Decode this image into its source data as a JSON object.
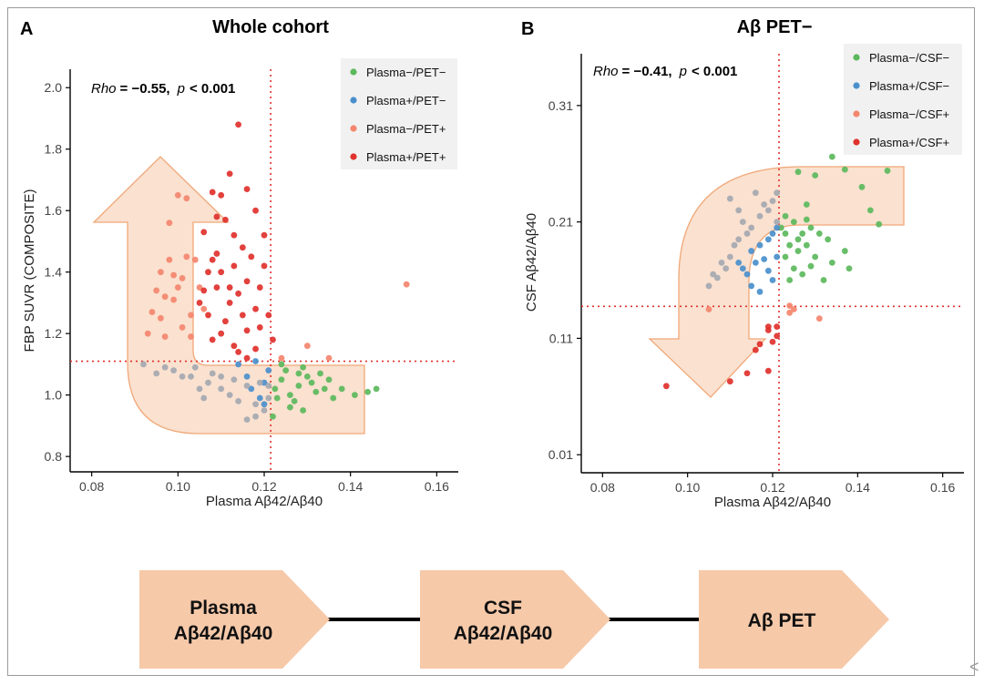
{
  "figure": {
    "arrow_fill": "#f6c9a9",
    "arrow_stroke": "#f0a878",
    "ref_line_color": "#e0312c",
    "corner_glyph": "<"
  },
  "chart_data": [
    {
      "type": "scatter",
      "panel_letter": "A",
      "title": "Whole cohort",
      "xlabel": "Plasma Aβ42/Aβ40",
      "ylabel": "FBP SUVR (COMPOSITE)",
      "xlim": [
        0.075,
        0.165
      ],
      "ylim": [
        0.75,
        2.06
      ],
      "xticks": [
        "0.08",
        "0.10",
        "0.12",
        "0.14",
        "0.16"
      ],
      "yticks": [
        "0.8",
        "1.0",
        "1.2",
        "1.4",
        "1.6",
        "1.8",
        "2.0"
      ],
      "ref_x": 0.1215,
      "ref_y": 1.11,
      "annotation": {
        "rho_label": "Rho",
        "rho_value": "= −0.55,",
        "p_label": "p",
        "p_value": "< 0.001"
      },
      "legend": [
        {
          "key": "neg_neg",
          "label": "Plasma−/PET−",
          "color": "#5cb85c"
        },
        {
          "key": "pos_neg",
          "label": "Plasma+/PET−",
          "color": "#4a8fcc"
        },
        {
          "key": "neg_pos",
          "label": "Plasma−/PET+",
          "color": "#f4866e"
        },
        {
          "key": "pos_pos",
          "label": "Plasma+/PET+",
          "color": "#e0312c"
        }
      ],
      "series": [
        {
          "name": "Plasma−/PET−",
          "color": "#5cb85c",
          "points": [
            [
              0.1225,
              1.02
            ],
            [
              0.124,
              1.05
            ],
            [
              0.126,
              1.0
            ],
            [
              0.128,
              1.03
            ],
            [
              0.13,
              1.06
            ],
            [
              0.132,
              1.01
            ],
            [
              0.127,
              0.98
            ],
            [
              0.125,
              1.08
            ],
            [
              0.129,
              0.95
            ],
            [
              0.131,
              1.04
            ],
            [
              0.134,
              1.02
            ],
            [
              0.136,
              0.99
            ],
            [
              0.133,
              1.07
            ],
            [
              0.138,
              1.02
            ],
            [
              0.141,
              1.0
            ],
            [
              0.144,
              1.01
            ],
            [
              0.146,
              1.02
            ],
            [
              0.124,
              1.1
            ],
            [
              0.122,
              0.93
            ],
            [
              0.126,
              0.96
            ],
            [
              0.129,
              1.09
            ],
            [
              0.135,
              1.05
            ],
            [
              0.123,
              0.99
            ],
            [
              0.128,
              1.07
            ]
          ]
        },
        {
          "name": "Plasma+/PET−",
          "color": "#4a8fcc",
          "points": [
            [
              0.114,
              1.1
            ],
            [
              0.118,
              1.11
            ],
            [
              0.121,
              1.08
            ],
            [
              0.12,
              1.04
            ],
            [
              0.117,
              1.02
            ],
            [
              0.116,
              1.06
            ],
            [
              0.119,
              0.99
            ],
            [
              0.12,
              0.97
            ]
          ]
        },
        {
          "name": "Plasma−/PET+",
          "color": "#f4866e",
          "points": [
            [
              0.1,
              1.65
            ],
            [
              0.098,
              1.56
            ],
            [
              0.096,
              1.4
            ],
            [
              0.097,
              1.32
            ],
            [
              0.094,
              1.27
            ],
            [
              0.093,
              1.2
            ],
            [
              0.102,
              1.45
            ],
            [
              0.101,
              1.38
            ],
            [
              0.099,
              1.31
            ],
            [
              0.103,
              1.26
            ],
            [
              0.104,
              1.44
            ],
            [
              0.105,
              1.35
            ],
            [
              0.098,
              1.44
            ],
            [
              0.095,
              1.34
            ],
            [
              0.101,
              1.22
            ],
            [
              0.103,
              1.19
            ],
            [
              0.097,
              1.19
            ],
            [
              0.096,
              1.25
            ],
            [
              0.1,
              1.35
            ],
            [
              0.106,
              1.28
            ],
            [
              0.153,
              1.36
            ],
            [
              0.13,
              1.16
            ],
            [
              0.135,
              1.12
            ],
            [
              0.124,
              1.12
            ],
            [
              0.102,
              1.64
            ],
            [
              0.099,
              1.39
            ]
          ]
        },
        {
          "name": "Plasma+/PET+",
          "color": "#e0312c",
          "points": [
            [
              0.114,
              1.88
            ],
            [
              0.112,
              1.72
            ],
            [
              0.108,
              1.66
            ],
            [
              0.11,
              1.65
            ],
            [
              0.116,
              1.67
            ],
            [
              0.109,
              1.58
            ],
            [
              0.111,
              1.57
            ],
            [
              0.118,
              1.6
            ],
            [
              0.12,
              1.52
            ],
            [
              0.115,
              1.48
            ],
            [
              0.113,
              1.42
            ],
            [
              0.107,
              1.4
            ],
            [
              0.106,
              1.34
            ],
            [
              0.109,
              1.35
            ],
            [
              0.112,
              1.3
            ],
            [
              0.114,
              1.33
            ],
            [
              0.116,
              1.37
            ],
            [
              0.118,
              1.28
            ],
            [
              0.119,
              1.22
            ],
            [
              0.111,
              1.24
            ],
            [
              0.108,
              1.18
            ],
            [
              0.113,
              1.16
            ],
            [
              0.116,
              1.12
            ],
            [
              0.118,
              1.15
            ],
            [
              0.105,
              1.3
            ],
            [
              0.107,
              1.26
            ],
            [
              0.11,
              1.2
            ],
            [
              0.12,
              1.42
            ],
            [
              0.121,
              1.26
            ],
            [
              0.122,
              1.18
            ],
            [
              0.109,
              1.46
            ],
            [
              0.106,
              1.53
            ],
            [
              0.113,
              1.52
            ],
            [
              0.117,
              1.45
            ],
            [
              0.119,
              1.35
            ],
            [
              0.115,
              1.26
            ],
            [
              0.112,
              1.35
            ],
            [
              0.11,
              1.4
            ],
            [
              0.108,
              1.44
            ],
            [
              0.116,
              1.21
            ],
            [
              0.114,
              1.14
            ]
          ]
        },
        {
          "name": "unlabeled",
          "color": "#a4a8b0",
          "points": [
            [
              0.092,
              1.1
            ],
            [
              0.095,
              1.07
            ],
            [
              0.099,
              1.08
            ],
            [
              0.103,
              1.06
            ],
            [
              0.107,
              1.04
            ],
            [
              0.11,
              1.02
            ],
            [
              0.112,
              1.0
            ],
            [
              0.114,
              0.98
            ],
            [
              0.116,
              1.03
            ],
            [
              0.118,
              0.97
            ],
            [
              0.12,
              0.95
            ],
            [
              0.116,
              0.92
            ],
            [
              0.118,
              0.93
            ],
            [
              0.121,
              0.99
            ],
            [
              0.113,
              1.05
            ],
            [
              0.108,
              1.07
            ],
            [
              0.105,
              1.02
            ],
            [
              0.101,
              1.06
            ],
            [
              0.097,
              1.09
            ],
            [
              0.104,
              1.09
            ],
            [
              0.119,
              1.04
            ],
            [
              0.121,
              1.03
            ],
            [
              0.106,
              0.99
            ],
            [
              0.11,
              1.06
            ]
          ]
        }
      ]
    },
    {
      "type": "scatter",
      "panel_letter": "B",
      "title": "Aβ PET−",
      "xlabel": "Plasma Aβ42/Aβ40",
      "ylabel": "CSF Aβ42/Aβ40",
      "xlim": [
        0.075,
        0.165
      ],
      "ylim": [
        -0.0055,
        0.3545
      ],
      "xticks": [
        "0.08",
        "0.10",
        "0.12",
        "0.14",
        "0.16"
      ],
      "yticks": [
        "0.01",
        "0.11",
        "0.21",
        "0.31"
      ],
      "ref_x": 0.1215,
      "ref_y": 0.1375,
      "annotation": {
        "rho_label": "Rho",
        "rho_value": "= −0.41,",
        "p_label": "p",
        "p_value": "< 0.001"
      },
      "legend": [
        {
          "key": "neg_neg",
          "label": "Plasma−/CSF−",
          "color": "#5cb85c"
        },
        {
          "key": "pos_neg",
          "label": "Plasma+/CSF−",
          "color": "#4a8fcc"
        },
        {
          "key": "neg_pos",
          "label": "Plasma−/CSF+",
          "color": "#f4866e"
        },
        {
          "key": "pos_pos",
          "label": "Plasma+/CSF+",
          "color": "#e0312c"
        }
      ],
      "series": [
        {
          "name": "Plasma−/CSF−",
          "color": "#5cb85c",
          "points": [
            [
              0.134,
              0.266
            ],
            [
              0.147,
              0.254
            ],
            [
              0.137,
              0.255
            ],
            [
              0.141,
              0.24
            ],
            [
              0.13,
              0.25
            ],
            [
              0.126,
              0.253
            ],
            [
              0.128,
              0.225
            ],
            [
              0.123,
              0.215
            ],
            [
              0.125,
              0.21
            ],
            [
              0.127,
              0.2
            ],
            [
              0.129,
              0.205
            ],
            [
              0.131,
              0.2
            ],
            [
              0.124,
              0.19
            ],
            [
              0.126,
              0.185
            ],
            [
              0.128,
              0.19
            ],
            [
              0.13,
              0.18
            ],
            [
              0.133,
              0.195
            ],
            [
              0.137,
              0.185
            ],
            [
              0.138,
              0.17
            ],
            [
              0.145,
              0.208
            ],
            [
              0.122,
              0.205
            ],
            [
              0.123,
              0.18
            ],
            [
              0.125,
              0.17
            ],
            [
              0.127,
              0.165
            ],
            [
              0.129,
              0.172
            ],
            [
              0.132,
              0.16
            ],
            [
              0.124,
              0.16
            ],
            [
              0.126,
              0.195
            ],
            [
              0.123,
              0.2
            ],
            [
              0.128,
              0.212
            ],
            [
              0.143,
              0.22
            ],
            [
              0.134,
              0.175
            ]
          ]
        },
        {
          "name": "Plasma+/CSF−",
          "color": "#4a8fcc",
          "points": [
            [
              0.121,
              0.205
            ],
            [
              0.12,
              0.2
            ],
            [
              0.119,
              0.195
            ],
            [
              0.117,
              0.19
            ],
            [
              0.115,
              0.185
            ],
            [
              0.116,
              0.175
            ],
            [
              0.118,
              0.178
            ],
            [
              0.113,
              0.17
            ],
            [
              0.114,
              0.165
            ],
            [
              0.12,
              0.16
            ],
            [
              0.112,
              0.175
            ],
            [
              0.115,
              0.155
            ],
            [
              0.119,
              0.168
            ],
            [
              0.117,
              0.15
            ],
            [
              0.121,
              0.18
            ]
          ]
        },
        {
          "name": "Plasma−/CSF+",
          "color": "#f4866e",
          "points": [
            [
              0.125,
              0.135
            ],
            [
              0.124,
              0.138
            ],
            [
              0.131,
              0.127
            ],
            [
              0.105,
              0.135
            ],
            [
              0.124,
              0.132
            ]
          ]
        },
        {
          "name": "Plasma+/CSF+",
          "color": "#e0312c",
          "points": [
            [
              0.095,
              0.069
            ],
            [
              0.11,
              0.073
            ],
            [
              0.114,
              0.08
            ],
            [
              0.119,
              0.082
            ],
            [
              0.121,
              0.12
            ],
            [
              0.119,
              0.117
            ],
            [
              0.117,
              0.105
            ],
            [
              0.12,
              0.107
            ],
            [
              0.121,
              0.112
            ],
            [
              0.116,
              0.1
            ],
            [
              0.119,
              0.12
            ]
          ]
        },
        {
          "name": "unlabeled",
          "color": "#a4a8b0",
          "points": [
            [
              0.105,
              0.155
            ],
            [
              0.107,
              0.162
            ],
            [
              0.109,
              0.17
            ],
            [
              0.108,
              0.175
            ],
            [
              0.11,
              0.18
            ],
            [
              0.111,
              0.19
            ],
            [
              0.112,
              0.195
            ],
            [
              0.114,
              0.2
            ],
            [
              0.113,
              0.21
            ],
            [
              0.115,
              0.205
            ],
            [
              0.117,
              0.215
            ],
            [
              0.119,
              0.22
            ],
            [
              0.121,
              0.21
            ],
            [
              0.116,
              0.235
            ],
            [
              0.118,
              0.225
            ],
            [
              0.11,
              0.23
            ],
            [
              0.12,
              0.228
            ],
            [
              0.121,
              0.235
            ],
            [
              0.112,
              0.22
            ],
            [
              0.106,
              0.165
            ]
          ]
        }
      ]
    }
  ],
  "flow": {
    "boxes": [
      {
        "line1": "Plasma",
        "line2": "Aβ42/Aβ40"
      },
      {
        "line1": "CSF",
        "line2": "Aβ42/Aβ40"
      },
      {
        "line1": "Aβ PET",
        "line2": ""
      }
    ]
  }
}
